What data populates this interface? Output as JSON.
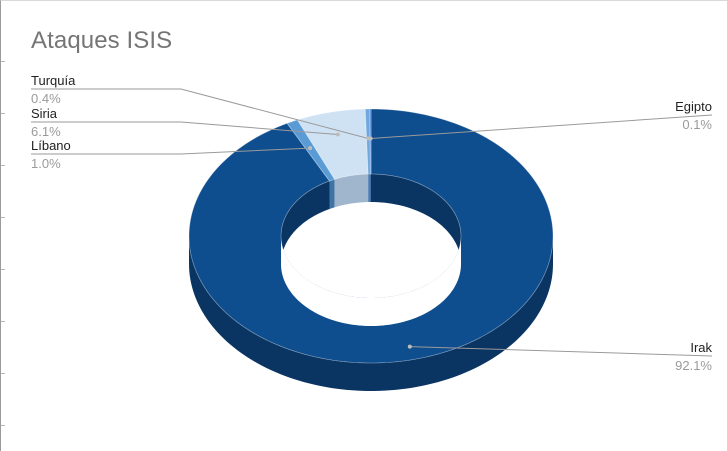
{
  "chart_data": {
    "type": "pie",
    "style": "3d-donut",
    "title": "Ataques ISIS",
    "slices": [
      {
        "label": "Irak",
        "percent_label": "92.1%",
        "value": 92.1,
        "color": "#0e4d8e",
        "side_color": "#0a3563"
      },
      {
        "label": "Líbano",
        "percent_label": "1.0%",
        "value": 1.0,
        "color": "#5b9bd5",
        "side_color": "#3f73a3"
      },
      {
        "label": "Siria",
        "percent_label": "6.1%",
        "value": 6.1,
        "color": "#cfe2f3",
        "side_color": "#9fb6cc"
      },
      {
        "label": "Turquía",
        "percent_label": "0.4%",
        "value": 0.4,
        "color": "#6fa8dc",
        "side_color": "#4e7fae"
      },
      {
        "label": "Egipto",
        "percent_label": "0.1%",
        "value": 0.1,
        "color": "#3c78d8",
        "side_color": "#2a56a0"
      }
    ],
    "legend": "none",
    "labels": "outside-with-leader-lines"
  }
}
